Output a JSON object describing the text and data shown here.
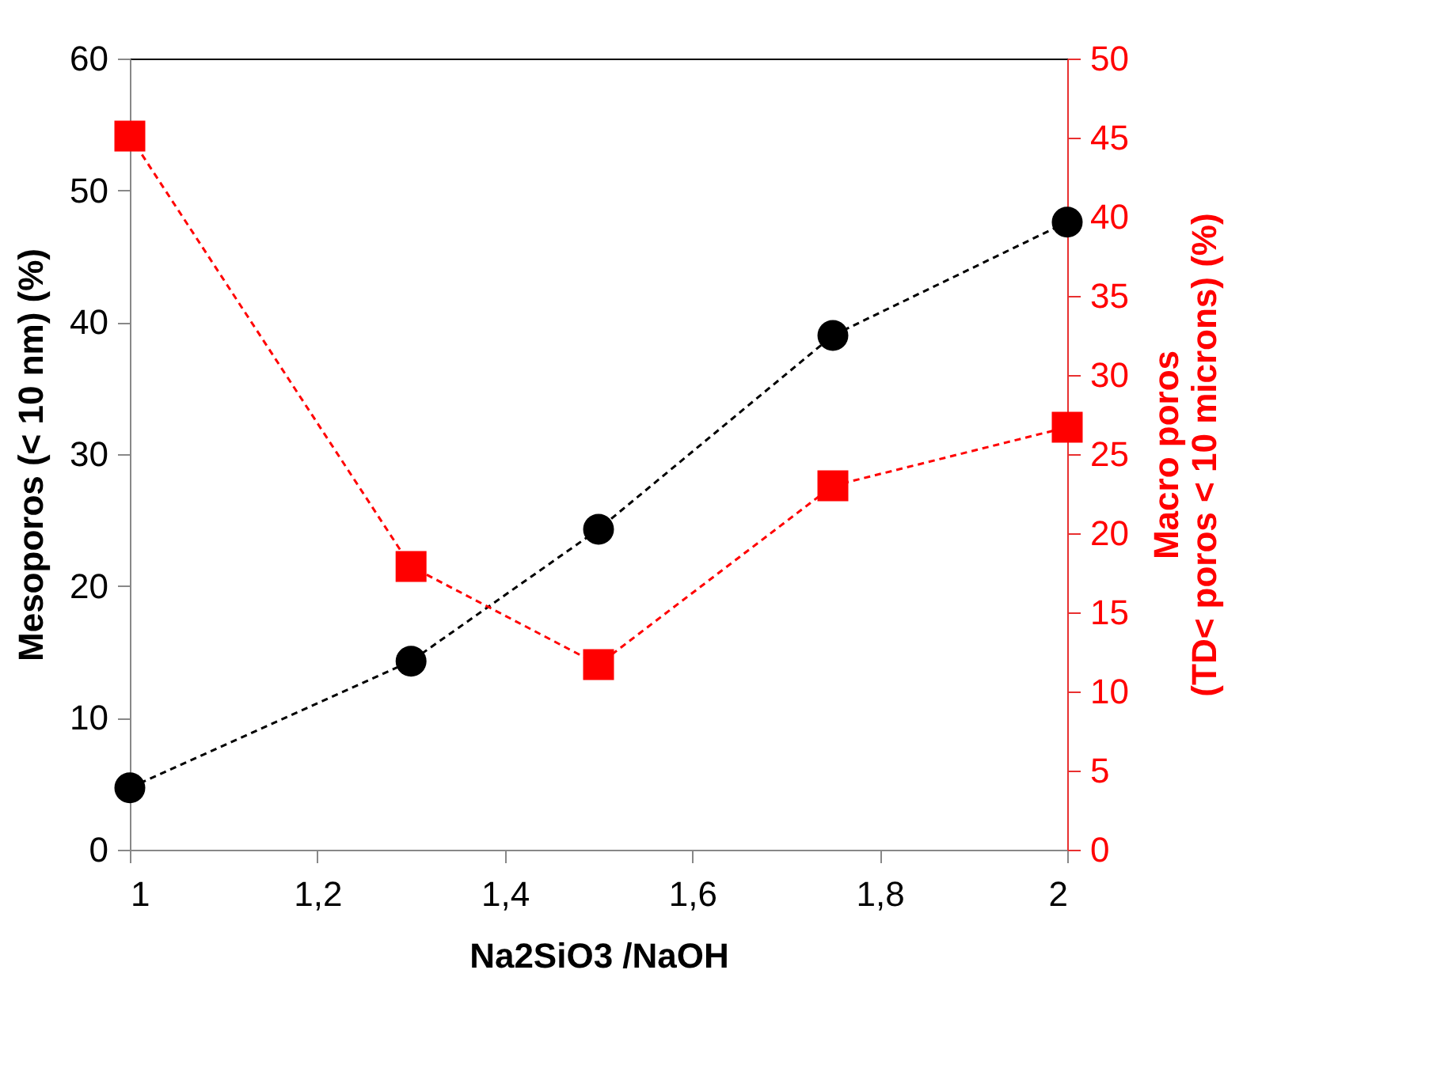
{
  "chart_data": {
    "type": "line",
    "xlabel": "Na2SiO3 /NaOH",
    "ylabel": "Mesoporos (< 10 nm) (%)",
    "y2label": "Macro poros\n(TD< poros < 10 microns) (%)",
    "x": [
      1,
      1.3,
      1.5,
      1.75,
      2
    ],
    "series": [
      {
        "color": "#000000",
        "marker": "circle",
        "values": [
          4.7,
          14.3,
          24.3,
          39.0,
          47.6
        ]
      },
      {
        "color": "#ff0000",
        "marker": "square",
        "axis": "y2",
        "values": [
          45.1,
          17.9,
          11.7,
          23.0,
          26.7
        ]
      }
    ],
    "xlim": [
      1,
      2
    ],
    "xticks": [
      1,
      {
        "value": 1.2,
        "label": "1,2"
      },
      {
        "value": 1.4,
        "label": "1,4"
      },
      {
        "value": 1.6,
        "label": "1,6"
      },
      {
        "value": 1.8,
        "label": "1,8"
      },
      2
    ],
    "ylim": [
      0,
      60
    ],
    "yticks": [
      0,
      10,
      20,
      30,
      40,
      50,
      60
    ],
    "y2lim": [
      0,
      50
    ],
    "y2ticks": [
      0,
      5,
      10,
      15,
      20,
      25,
      30,
      35,
      40,
      45,
      50
    ],
    "line_style": "dashed"
  }
}
